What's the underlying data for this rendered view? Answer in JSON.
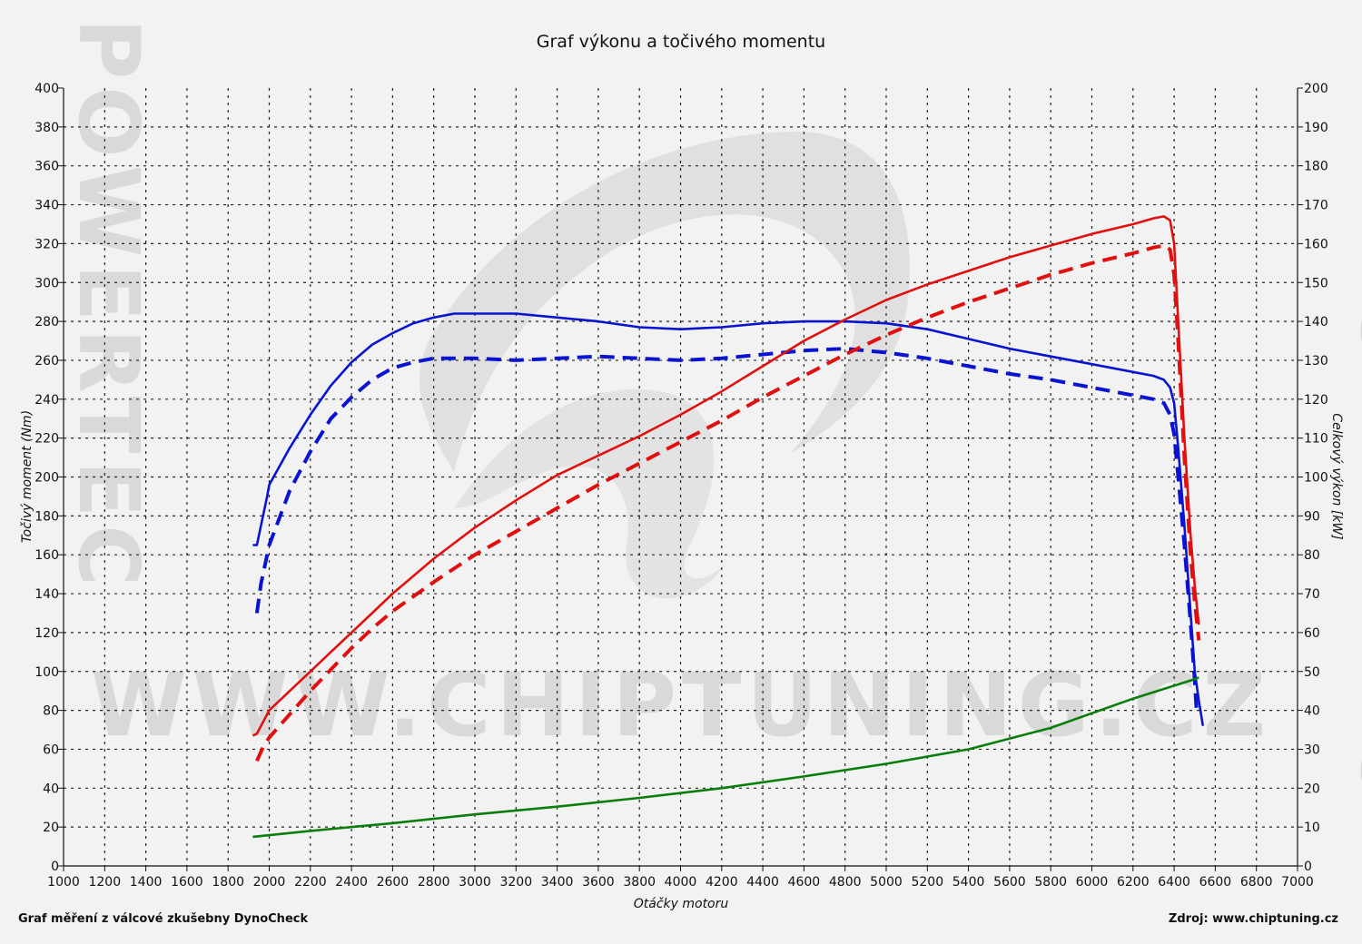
{
  "chart_data": {
    "type": "line",
    "title": "Graf výkonu a točivého momentu",
    "xlabel": "Otáčky motoru",
    "ylabel_left": "Točivý moment (Nm)",
    "ylabel_right": "Celkový výkon [kW]",
    "xlim": [
      1000,
      7000
    ],
    "ylim_left": [
      0,
      400
    ],
    "ylim_right": [
      0,
      200
    ],
    "x_ticks": [
      "1000",
      "1200",
      "1400",
      "1600",
      "1800",
      "2000",
      "2200",
      "2400",
      "2600",
      "2800",
      "3000",
      "3200",
      "3400",
      "3600",
      "3800",
      "4000",
      "4200",
      "4400",
      "4600",
      "4800",
      "5000",
      "5200",
      "5400",
      "5600",
      "5800",
      "6000",
      "6200",
      "6400",
      "6600",
      "6800",
      "7000"
    ],
    "y_left_ticks": [
      "0",
      "20",
      "40",
      "60",
      "80",
      "100",
      "120",
      "140",
      "160",
      "180",
      "200",
      "220",
      "240",
      "260",
      "280",
      "300",
      "320",
      "340",
      "360",
      "380",
      "400"
    ],
    "y_right_ticks": [
      "0",
      "10",
      "20",
      "30",
      "40",
      "50",
      "60",
      "70",
      "80",
      "90",
      "100",
      "110",
      "120",
      "130",
      "140",
      "150",
      "160",
      "170",
      "180",
      "190",
      "200"
    ],
    "grid": true,
    "series": [
      {
        "color": "#0a14d0",
        "dash": false,
        "axis": "left",
        "x": [
          1920,
          1940,
          1990,
          2000,
          2100,
          2200,
          2300,
          2400,
          2500,
          2600,
          2700,
          2800,
          2900,
          3000,
          3200,
          3400,
          3600,
          3800,
          4000,
          4200,
          4400,
          4600,
          4800,
          5000,
          5200,
          5400,
          5600,
          5800,
          6000,
          6200,
          6300,
          6350,
          6380,
          6400,
          6420,
          6450,
          6480,
          6500,
          6520,
          6540
        ],
        "y": [
          165,
          165,
          190,
          196,
          215,
          232,
          247,
          259,
          268,
          274,
          279,
          282,
          284,
          284,
          284,
          282,
          280,
          277,
          276,
          277,
          279,
          280,
          280,
          279,
          276,
          271,
          266,
          262,
          258,
          254,
          252,
          250,
          246,
          238,
          215,
          175,
          130,
          100,
          85,
          72
        ]
      },
      {
        "color": "#0a14d0",
        "dash": true,
        "axis": "left",
        "x": [
          1940,
          1960,
          2000,
          2100,
          2200,
          2300,
          2400,
          2500,
          2600,
          2700,
          2800,
          2900,
          3000,
          3200,
          3400,
          3600,
          3800,
          4000,
          4200,
          4400,
          4600,
          4800,
          5000,
          5200,
          5400,
          5600,
          5800,
          6000,
          6200,
          6300,
          6350,
          6380,
          6400,
          6420,
          6450,
          6480,
          6500,
          6510
        ],
        "y": [
          130,
          145,
          165,
          193,
          213,
          230,
          241,
          250,
          256,
          259,
          261,
          261,
          261,
          260,
          261,
          262,
          261,
          260,
          261,
          263,
          265,
          266,
          264,
          261,
          257,
          253,
          250,
          246,
          242,
          240,
          238,
          232,
          222,
          200,
          165,
          125,
          95,
          78
        ]
      },
      {
        "color": "#e01010",
        "dash": false,
        "axis": "right",
        "x": [
          1920,
          1940,
          1970,
          2000,
          2100,
          2200,
          2300,
          2400,
          2500,
          2600,
          2800,
          3000,
          3200,
          3400,
          3600,
          3800,
          4000,
          4200,
          4400,
          4600,
          4800,
          5000,
          5200,
          5400,
          5600,
          5800,
          6000,
          6200,
          6300,
          6350,
          6380,
          6400,
          6420,
          6450,
          6480,
          6500,
          6520
        ],
        "y": [
          33.5,
          34,
          37,
          40,
          45,
          50,
          55,
          60,
          65,
          70,
          79,
          87,
          94,
          100.5,
          105.5,
          110.5,
          116,
          122,
          128.5,
          135,
          140.5,
          145.5,
          149.5,
          153,
          156.5,
          159.5,
          162.5,
          165,
          166.5,
          167,
          166,
          160,
          140,
          110,
          85,
          72,
          62
        ]
      },
      {
        "color": "#e01010",
        "dash": true,
        "axis": "right",
        "x": [
          1940,
          1970,
          2000,
          2100,
          2200,
          2300,
          2400,
          2500,
          2600,
          2800,
          3000,
          3200,
          3400,
          3600,
          3800,
          4000,
          4200,
          4400,
          4600,
          4800,
          5000,
          5200,
          5400,
          5600,
          5800,
          6000,
          6200,
          6300,
          6350,
          6380,
          6400,
          6420,
          6450,
          6480,
          6500,
          6520
        ],
        "y": [
          27,
          30.5,
          33,
          39,
          45,
          50.5,
          56,
          61,
          65.5,
          73,
          80,
          86,
          92,
          98,
          103.5,
          109,
          114.5,
          120.5,
          126,
          131.5,
          136.5,
          141,
          145,
          148.5,
          152,
          155,
          157.5,
          159,
          159.5,
          158.5,
          152,
          135,
          105,
          80,
          68,
          58
        ]
      },
      {
        "color": "#0a7d0a",
        "dash": false,
        "axis": "left",
        "x": [
          1920,
          2200,
          2600,
          3000,
          3400,
          3800,
          4200,
          4600,
          5000,
          5400,
          5800,
          6200,
          6500,
          6520
        ],
        "y": [
          15,
          18,
          22,
          26.5,
          30.5,
          35,
          40,
          46,
          52.5,
          60,
          71,
          86,
          96,
          97
        ]
      }
    ]
  },
  "watermark": {
    "url": "WWW.CHIPTUNING.CZ",
    "brand": "POWERTEC"
  },
  "footer": {
    "left": "Graf měření z válcové zkušebny DynoCheck",
    "right": "Zdroj: www.chiptuning.cz"
  }
}
